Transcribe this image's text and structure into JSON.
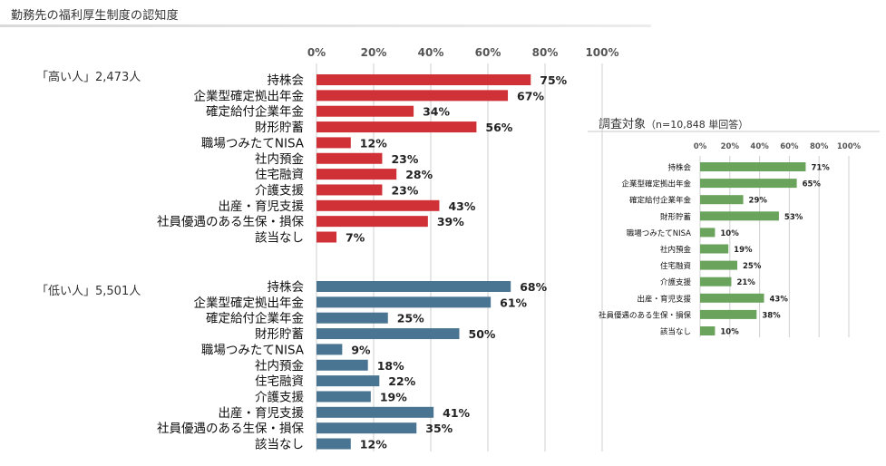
{
  "page": {
    "title": "勤務先の福利厚生制度の認知度"
  },
  "colors": {
    "high": "#d03136",
    "low": "#4a7592",
    "all": "#6aa35c",
    "grid": "#cfcfcf"
  },
  "chart_data": [
    {
      "type": "bar",
      "orientation": "horizontal",
      "title": "",
      "group_label": "「高い人」2,473人",
      "categories": [
        "持株会",
        "企業型確定拠出年金",
        "確定給付企業年金",
        "財形貯蓄",
        "職場つみたてNISA",
        "社内預金",
        "住宅融資",
        "介護支援",
        "出産・育児支援",
        "社員優遇のある生保・損保",
        "該当なし"
      ],
      "values": [
        75,
        67,
        34,
        56,
        12,
        23,
        28,
        23,
        43,
        39,
        7
      ],
      "value_labels": [
        "75%",
        "67%",
        "34%",
        "56%",
        "12%",
        "23%",
        "28%",
        "23%",
        "43%",
        "39%",
        "7%"
      ],
      "xlim": [
        0,
        100
      ],
      "ticks": [
        "0%",
        "20%",
        "40%",
        "60%",
        "80%",
        "100%"
      ],
      "grid": true
    },
    {
      "type": "bar",
      "orientation": "horizontal",
      "title": "",
      "group_label": "「低い人」5,501人",
      "categories": [
        "持株会",
        "企業型確定拠出年金",
        "確定給付企業年金",
        "財形貯蓄",
        "職場つみたてNISA",
        "社内預金",
        "住宅融資",
        "介護支援",
        "出産・育児支援",
        "社員優遇のある生保・損保",
        "該当なし"
      ],
      "values": [
        68,
        61,
        25,
        50,
        9,
        18,
        22,
        19,
        41,
        35,
        12
      ],
      "value_labels": [
        "68%",
        "61%",
        "25%",
        "50%",
        "9%",
        "18%",
        "22%",
        "19%",
        "41%",
        "35%",
        "12%"
      ],
      "xlim": [
        0,
        100
      ],
      "grid": true
    },
    {
      "type": "bar",
      "orientation": "horizontal",
      "title": "調査対象",
      "subtitle": "（n=10,848 単回答）",
      "categories": [
        "持株会",
        "企業型確定拠出年金",
        "確定給付企業年金",
        "財形貯蓄",
        "職場つみたてNISA",
        "社内預金",
        "住宅融資",
        "介護支援",
        "出産・育児支援",
        "社員優遇のある生保・損保",
        "該当なし"
      ],
      "values": [
        71,
        65,
        29,
        53,
        10,
        19,
        25,
        21,
        43,
        38,
        10
      ],
      "value_labels": [
        "71%",
        "65%",
        "29%",
        "53%",
        "10%",
        "19%",
        "25%",
        "21%",
        "43%",
        "38%",
        "10%"
      ],
      "xlim": [
        0,
        100
      ],
      "ticks": [
        "0%",
        "20%",
        "40%",
        "60%",
        "80%",
        "100%"
      ],
      "grid": true
    }
  ]
}
